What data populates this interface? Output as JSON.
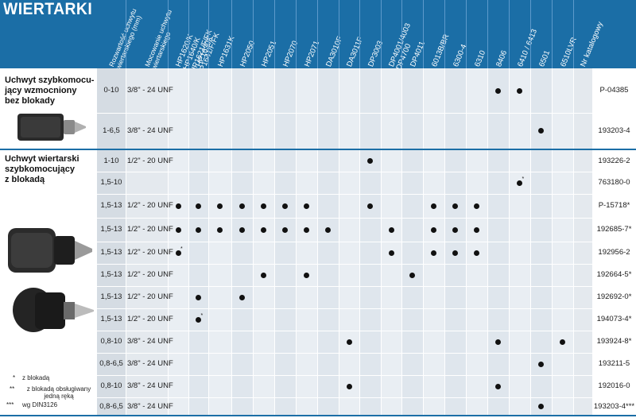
{
  "title": "WIERTARKI",
  "headers": [
    "Rozwartość uchwytu wiertarskiego (mm)",
    "Mocowanie uchwytu wiertarskiego",
    "HP1620/K HP1640/K HP1621/F/FK HP1641/F/FK",
    "HP1630K",
    "HP1631K",
    "HP2050",
    "HP2051",
    "HP2070",
    "HP2071",
    "DA3010F",
    "DA3011F",
    "DP3003",
    "DP4001/4003 DP4700",
    "DP4011",
    "6013B/BR",
    "6300-4",
    "6310",
    "8406",
    "6410 / 6413",
    "6501",
    "6510LVR",
    "Nr katalogowy"
  ],
  "sections": [
    {
      "title": "Uchwyt szybkomocu-\njący wzmocniony\nbez blokady"
    },
    {
      "title": "Uchwyt wiertarski\nszybkomocujący\nz blokadą"
    }
  ],
  "rows": [
    {
      "range": "0-10",
      "mount": "3/8\" - 24 UNF",
      "catalog": "P-04385",
      "dots": [
        17,
        18
      ],
      "stars": []
    },
    {
      "range": "1-6,5",
      "mount": "3/8\" - 24 UNF",
      "catalog": "193203-4",
      "dots": [
        19
      ],
      "stars": []
    },
    {
      "range": "1-10",
      "mount": "1/2\" - 20 UNF",
      "catalog": "193226-2",
      "dots": [
        11
      ],
      "stars": []
    },
    {
      "range": "1,5-10",
      "mount": "",
      "catalog": "763180-0",
      "dots": [
        18
      ],
      "stars": [
        18
      ]
    },
    {
      "range": "1,5-13",
      "mount": "1/2\" - 20 UNF",
      "catalog": "P-15718*",
      "dots": [
        2,
        3,
        4,
        5,
        6,
        7,
        8,
        11,
        14,
        15,
        16
      ],
      "stars": []
    },
    {
      "range": "1,5-13",
      "mount": "1/2\" - 20 UNF",
      "catalog": "192685-7*",
      "dots": [
        2,
        3,
        4,
        5,
        6,
        7,
        8,
        9,
        12,
        14,
        15,
        16
      ],
      "stars": []
    },
    {
      "range": "1,5-13",
      "mount": "1/2\" - 20 UNF",
      "catalog": "192956-2",
      "dots": [
        2,
        12,
        14,
        15,
        16
      ],
      "stars": [
        2
      ]
    },
    {
      "range": "1,5-13",
      "mount": "1/2\" - 20 UNF",
      "catalog": "192664-5*",
      "dots": [
        6,
        8,
        13
      ],
      "stars": []
    },
    {
      "range": "1,5-13",
      "mount": "1/2\" - 20 UNF",
      "catalog": "192692-0*",
      "dots": [
        3,
        5
      ],
      "stars": []
    },
    {
      "range": "1,5-13",
      "mount": "1/2\" - 20 UNF",
      "catalog": "194073-4*",
      "dots": [
        3
      ],
      "stars": [
        3
      ]
    },
    {
      "range": "0,8-10",
      "mount": "3/8\" - 24 UNF",
      "catalog": "193924-8*",
      "dots": [
        10,
        17,
        20
      ],
      "stars": []
    },
    {
      "range": "0,8-6,5",
      "mount": "3/8\" - 24 UNF",
      "catalog": "193211-5",
      "dots": [
        19
      ],
      "stars": []
    },
    {
      "range": "0,8-10",
      "mount": "3/8\" - 24 UNF",
      "catalog": "192016-0",
      "dots": [
        10,
        17
      ],
      "stars": []
    },
    {
      "range": "0,8-6,5",
      "mount": "3/8\" - 24 UNF",
      "catalog": "193203-4***",
      "dots": [
        19
      ],
      "stars": []
    }
  ],
  "legend": [
    {
      "mark": "*",
      "text": "z blokadą"
    },
    {
      "mark": "**",
      "text": "z blokadą obsługiwany jedną ręką"
    },
    {
      "mark": "***",
      "text": "wg DIN3126"
    }
  ],
  "colors": {
    "header_blue": "#1b6ea6",
    "cell_light": "#eef2f6",
    "cell_mid": "#dde5ed",
    "cell_gray": "#cfd6dd",
    "text": "#111111"
  }
}
